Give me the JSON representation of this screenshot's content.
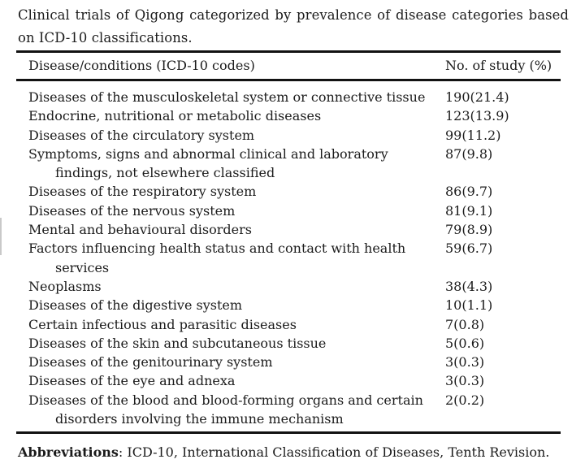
{
  "caption": "Clinical trials of Qigong categorized by prevalence of disease categories based on ICD-10 classifications.",
  "table": {
    "col1_header": "Disease/conditions (ICD-10 codes)",
    "col2_header": "No. of study (%)",
    "rows": [
      {
        "lines": [
          "Diseases of the musculoskeletal system or connective tissue"
        ],
        "value": "190(21.4)"
      },
      {
        "lines": [
          "Endocrine, nutritional or metabolic diseases"
        ],
        "value": "123(13.9)"
      },
      {
        "lines": [
          "Diseases of the circulatory system"
        ],
        "value": "99(11.2)"
      },
      {
        "lines": [
          "Symptoms, signs and abnormal clinical and laboratory",
          "findings, not elsewhere classified"
        ],
        "value": "87(9.8)"
      },
      {
        "lines": [
          "Diseases of the respiratory system"
        ],
        "value": "86(9.7)"
      },
      {
        "lines": [
          "Diseases of the nervous system"
        ],
        "value": "81(9.1)"
      },
      {
        "lines": [
          "Mental and behavioural disorders"
        ],
        "value": "79(8.9)"
      },
      {
        "lines": [
          "Factors influencing health status and contact with health",
          "services"
        ],
        "value": "59(6.7)"
      },
      {
        "lines": [
          "Neoplasms"
        ],
        "value": "38(4.3)"
      },
      {
        "lines": [
          "Diseases of the digestive system"
        ],
        "value": "10(1.1)"
      },
      {
        "lines": [
          "Certain infectious and parasitic diseases"
        ],
        "value": "7(0.8)"
      },
      {
        "lines": [
          "Diseases of the skin and subcutaneous tissue"
        ],
        "value": "5(0.6)"
      },
      {
        "lines": [
          "Diseases of the genitourinary system"
        ],
        "value": "3(0.3)"
      },
      {
        "lines": [
          "Diseases of the eye and adnexa"
        ],
        "value": "3(0.3)"
      },
      {
        "lines": [
          "Diseases of the blood and blood-forming organs and certain",
          "disorders involving the immune mechanism"
        ],
        "value": "2(0.2)"
      }
    ]
  },
  "footnote": {
    "label": "Abbreviations",
    "text": ": ICD-10, International Classification of Diseases, Tenth Revision."
  }
}
